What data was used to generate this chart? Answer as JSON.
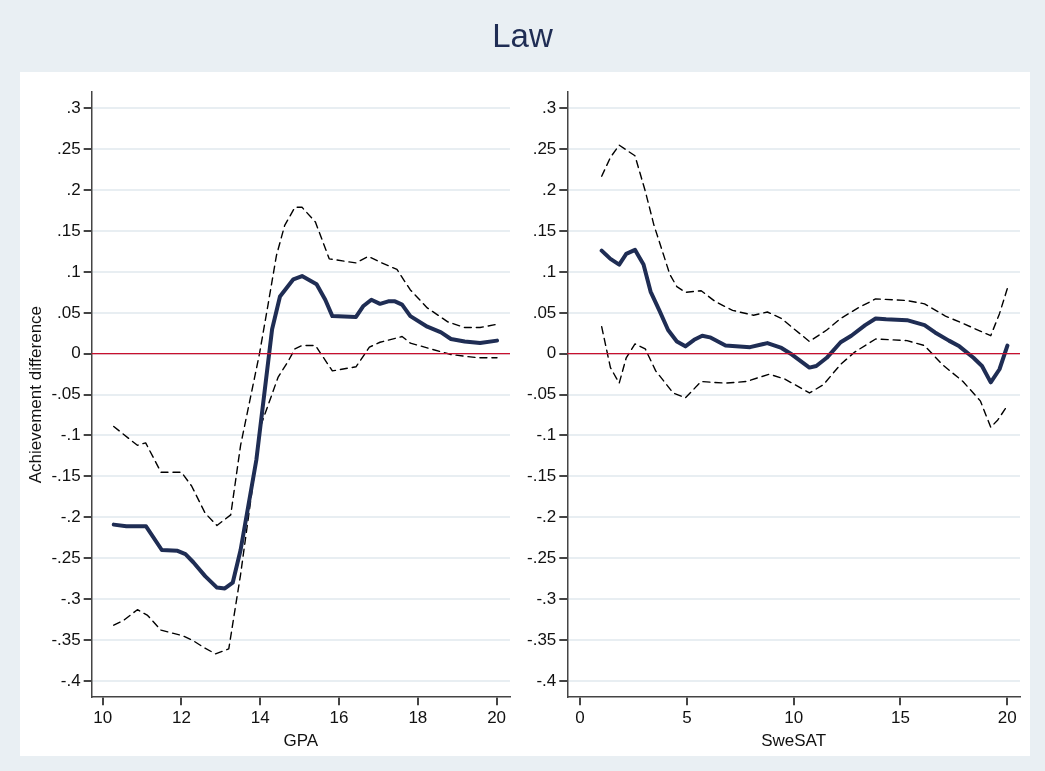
{
  "chart_data": [
    {
      "type": "line",
      "title": "Law",
      "xlabel": "GPA",
      "ylabel": "Achievement difference",
      "xlim": [
        9.72,
        20.34
      ],
      "xticks": [
        10,
        12,
        14,
        16,
        18,
        20
      ],
      "ylim": [
        -0.42,
        0.32
      ],
      "yticks": [
        {
          "value": -0.4,
          "label": "-.4"
        },
        {
          "value": -0.35,
          "label": "-.35"
        },
        {
          "value": -0.3,
          "label": "-.3"
        },
        {
          "value": -0.25,
          "label": "-.25"
        },
        {
          "value": -0.2,
          "label": "-.2"
        },
        {
          "value": -0.15,
          "label": "-.15"
        },
        {
          "value": -0.1,
          "label": "-.1"
        },
        {
          "value": -0.05,
          "label": "-.05"
        },
        0,
        {
          "value": 0.05,
          "label": ".05"
        },
        {
          "value": 0.1,
          "label": ".1"
        },
        {
          "value": 0.15,
          "label": ".15"
        },
        {
          "value": 0.2,
          "label": ".2"
        },
        {
          "value": 0.25,
          "label": ".25"
        },
        {
          "value": 0.3,
          "label": ".3"
        }
      ],
      "grid": "y",
      "legend": false,
      "marker": "none",
      "ref_lines": [
        {
          "axis": "y",
          "value": 0,
          "color": "#c8102e"
        }
      ],
      "series": [
        {
          "color": "#1f2d54",
          "line_style": "solid",
          "x": [
            10.28,
            10.6,
            11.1,
            11.5,
            11.9,
            12.1,
            12.3,
            12.6,
            12.9,
            13.1,
            13.3,
            13.5,
            13.9,
            14.3,
            14.5,
            14.84,
            15.06,
            15.43,
            15.65,
            15.83,
            16.43,
            16.61,
            16.82,
            17.04,
            17.25,
            17.42,
            17.6,
            17.81,
            18.24,
            18.59,
            18.84,
            19.19,
            19.58,
            20.01
          ],
          "values": [
            -0.209,
            -0.211,
            -0.211,
            -0.24,
            -0.241,
            -0.245,
            -0.255,
            -0.272,
            -0.286,
            -0.287,
            -0.28,
            -0.24,
            -0.13,
            0.03,
            0.07,
            0.091,
            0.095,
            0.085,
            0.066,
            0.046,
            0.045,
            0.058,
            0.066,
            0.061,
            0.064,
            0.064,
            0.06,
            0.046,
            0.033,
            0.026,
            0.018,
            0.015,
            0.013,
            0.016
          ]
        },
        {
          "color": "#000000",
          "line_style": "dashed",
          "x": [
            10.28,
            10.88,
            11.09,
            11.48,
            12.0,
            12.26,
            12.6,
            12.9,
            13.25,
            13.5,
            13.98,
            14.19,
            14.41,
            14.62,
            14.88,
            15.06,
            15.4,
            15.75,
            16.43,
            16.74,
            17.04,
            17.47,
            17.81,
            18.24,
            18.76,
            19.19,
            19.58,
            20.01
          ],
          "values": [
            -0.089,
            -0.112,
            -0.109,
            -0.145,
            -0.145,
            -0.162,
            -0.195,
            -0.21,
            -0.197,
            -0.112,
            0,
            0.058,
            0.12,
            0.157,
            0.179,
            0.179,
            0.161,
            0.116,
            0.111,
            0.119,
            0.112,
            0.103,
            0.078,
            0.056,
            0.039,
            0.032,
            0.032,
            0.036
          ]
        },
        {
          "color": "#000000",
          "line_style": "dashed",
          "x": [
            10.28,
            10.53,
            10.88,
            11.14,
            11.48,
            12.04,
            12.3,
            12.56,
            12.86,
            13.2,
            13.5,
            14.02,
            14.45,
            14.71,
            14.88,
            15.06,
            15.4,
            15.83,
            16.43,
            16.77,
            17.04,
            17.6,
            17.81,
            18.32,
            18.84,
            19.53,
            20.01
          ],
          "values": [
            -0.332,
            -0.326,
            -0.313,
            -0.32,
            -0.338,
            -0.345,
            -0.351,
            -0.359,
            -0.367,
            -0.361,
            -0.27,
            -0.087,
            -0.029,
            -0.009,
            0.006,
            0.01,
            0.01,
            -0.021,
            -0.016,
            0.008,
            0.014,
            0.021,
            0.013,
            0.006,
            -0.001,
            -0.005,
            -0.005
          ]
        }
      ]
    },
    {
      "type": "line",
      "xlabel": "SweSAT",
      "xlim": [
        -0.6,
        20.6
      ],
      "xticks": [
        0,
        5,
        10,
        15,
        20
      ],
      "ylim": [
        -0.42,
        0.32
      ],
      "yticks": [
        {
          "value": -0.4,
          "label": "-.4"
        },
        {
          "value": -0.35,
          "label": "-.35"
        },
        {
          "value": -0.3,
          "label": "-.3"
        },
        {
          "value": -0.25,
          "label": "-.25"
        },
        {
          "value": -0.2,
          "label": "-.2"
        },
        {
          "value": -0.15,
          "label": "-.15"
        },
        {
          "value": -0.1,
          "label": "-.1"
        },
        {
          "value": -0.05,
          "label": "-.05"
        },
        0,
        {
          "value": 0.05,
          "label": ".05"
        },
        {
          "value": 0.1,
          "label": ".1"
        },
        {
          "value": 0.15,
          "label": ".15"
        },
        {
          "value": 0.2,
          "label": ".2"
        },
        {
          "value": 0.25,
          "label": ".25"
        },
        {
          "value": 0.3,
          "label": ".3"
        }
      ],
      "grid": "y",
      "legend": false,
      "marker": "none",
      "ref_lines": [
        {
          "axis": "y",
          "value": 0,
          "color": "#c8102e"
        }
      ],
      "series": [
        {
          "color": "#1f2d54",
          "line_style": "solid",
          "x": [
            1.01,
            1.42,
            1.83,
            2.16,
            2.57,
            2.97,
            3.3,
            3.71,
            4.12,
            4.53,
            4.93,
            5.34,
            5.72,
            6.08,
            6.81,
            7.96,
            8.77,
            9.43,
            9.92,
            10.74,
            11.06,
            11.55,
            12.2,
            12.7,
            13.35,
            13.84,
            14.33,
            15.31,
            16.13,
            16.62,
            17.27,
            17.76,
            18.42,
            18.82,
            19.23,
            19.64,
            20.01
          ],
          "values": [
            0.126,
            0.116,
            0.109,
            0.122,
            0.127,
            0.109,
            0.076,
            0.053,
            0.029,
            0.015,
            0.009,
            0.017,
            0.022,
            0.02,
            0.01,
            0.008,
            0.013,
            0.007,
            -0.001,
            -0.017,
            -0.015,
            -0.005,
            0.014,
            0.022,
            0.035,
            0.043,
            0.042,
            0.041,
            0.035,
            0.026,
            0.016,
            0.009,
            -0.005,
            -0.015,
            -0.035,
            -0.019,
            0.01
          ]
        },
        {
          "color": "#000000",
          "line_style": "dashed",
          "x": [
            1.01,
            1.42,
            1.83,
            2.57,
            3.05,
            3.46,
            3.87,
            4.2,
            4.53,
            4.93,
            5.67,
            6.32,
            7.14,
            8.12,
            8.77,
            9.43,
            10.08,
            10.74,
            11.55,
            12.2,
            13.02,
            13.84,
            15.31,
            16.13,
            17.11,
            17.93,
            19.23,
            19.64,
            20.01
          ],
          "values": [
            0.217,
            0.24,
            0.255,
            0.242,
            0.199,
            0.157,
            0.124,
            0.097,
            0.082,
            0.075,
            0.077,
            0.064,
            0.053,
            0.047,
            0.051,
            0.043,
            0.029,
            0.015,
            0.029,
            0.043,
            0.056,
            0.067,
            0.065,
            0.061,
            0.046,
            0.037,
            0.022,
            0.049,
            0.08
          ]
        },
        {
          "color": "#000000",
          "line_style": "dashed",
          "x": [
            1.01,
            1.42,
            1.83,
            2.16,
            2.57,
            3.05,
            3.54,
            4.36,
            4.93,
            5.67,
            6.81,
            7.79,
            8.86,
            9.59,
            10.74,
            11.39,
            12.2,
            12.86,
            13.84,
            15.31,
            16.13,
            16.95,
            17.93,
            18.75,
            19.23,
            19.56,
            19.97
          ],
          "values": [
            0.033,
            -0.017,
            -0.036,
            -0.005,
            0.012,
            0.006,
            -0.021,
            -0.048,
            -0.054,
            -0.034,
            -0.036,
            -0.034,
            -0.025,
            -0.031,
            -0.048,
            -0.038,
            -0.013,
            0.002,
            0.018,
            0.016,
            0.01,
            -0.013,
            -0.034,
            -0.058,
            -0.09,
            -0.081,
            -0.065
          ]
        }
      ]
    }
  ]
}
